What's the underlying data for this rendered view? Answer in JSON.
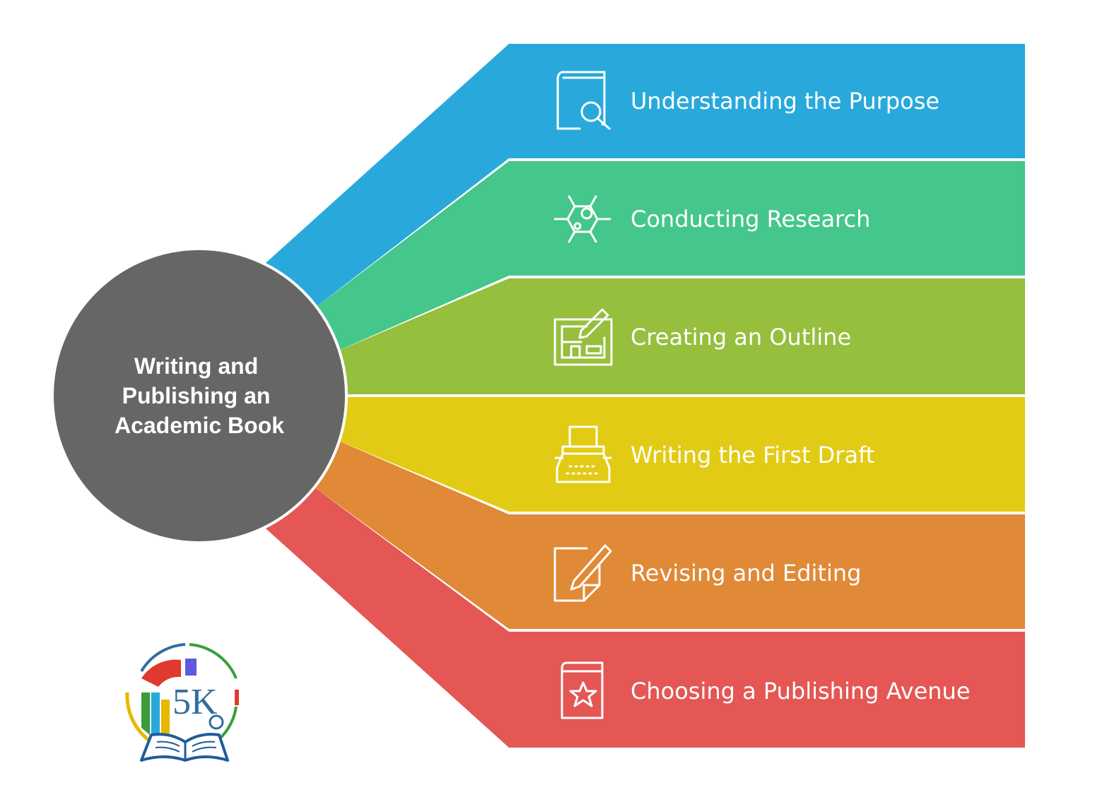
{
  "diagram": {
    "center_title_lines": [
      "Writing and",
      "Publishing an",
      "Academic Book"
    ],
    "center_color": "#666666",
    "steps": [
      {
        "label": "Understanding the Purpose",
        "icon": "book-search-icon",
        "color": "#29a9db"
      },
      {
        "label": "Conducting Research",
        "icon": "molecule-icon",
        "color": "#45c68b"
      },
      {
        "label": "Creating an Outline",
        "icon": "blueprint-pencil-icon",
        "color": "#95bf3d"
      },
      {
        "label": "Writing the First Draft",
        "icon": "typewriter-icon",
        "color": "#e2cb15"
      },
      {
        "label": "Revising and Editing",
        "icon": "document-pen-icon",
        "color": "#e08936"
      },
      {
        "label": "Choosing a Publishing Avenue",
        "icon": "book-star-icon",
        "color": "#e45754"
      }
    ]
  },
  "logo": {
    "text": "5K",
    "icon": "open-book-logo"
  }
}
